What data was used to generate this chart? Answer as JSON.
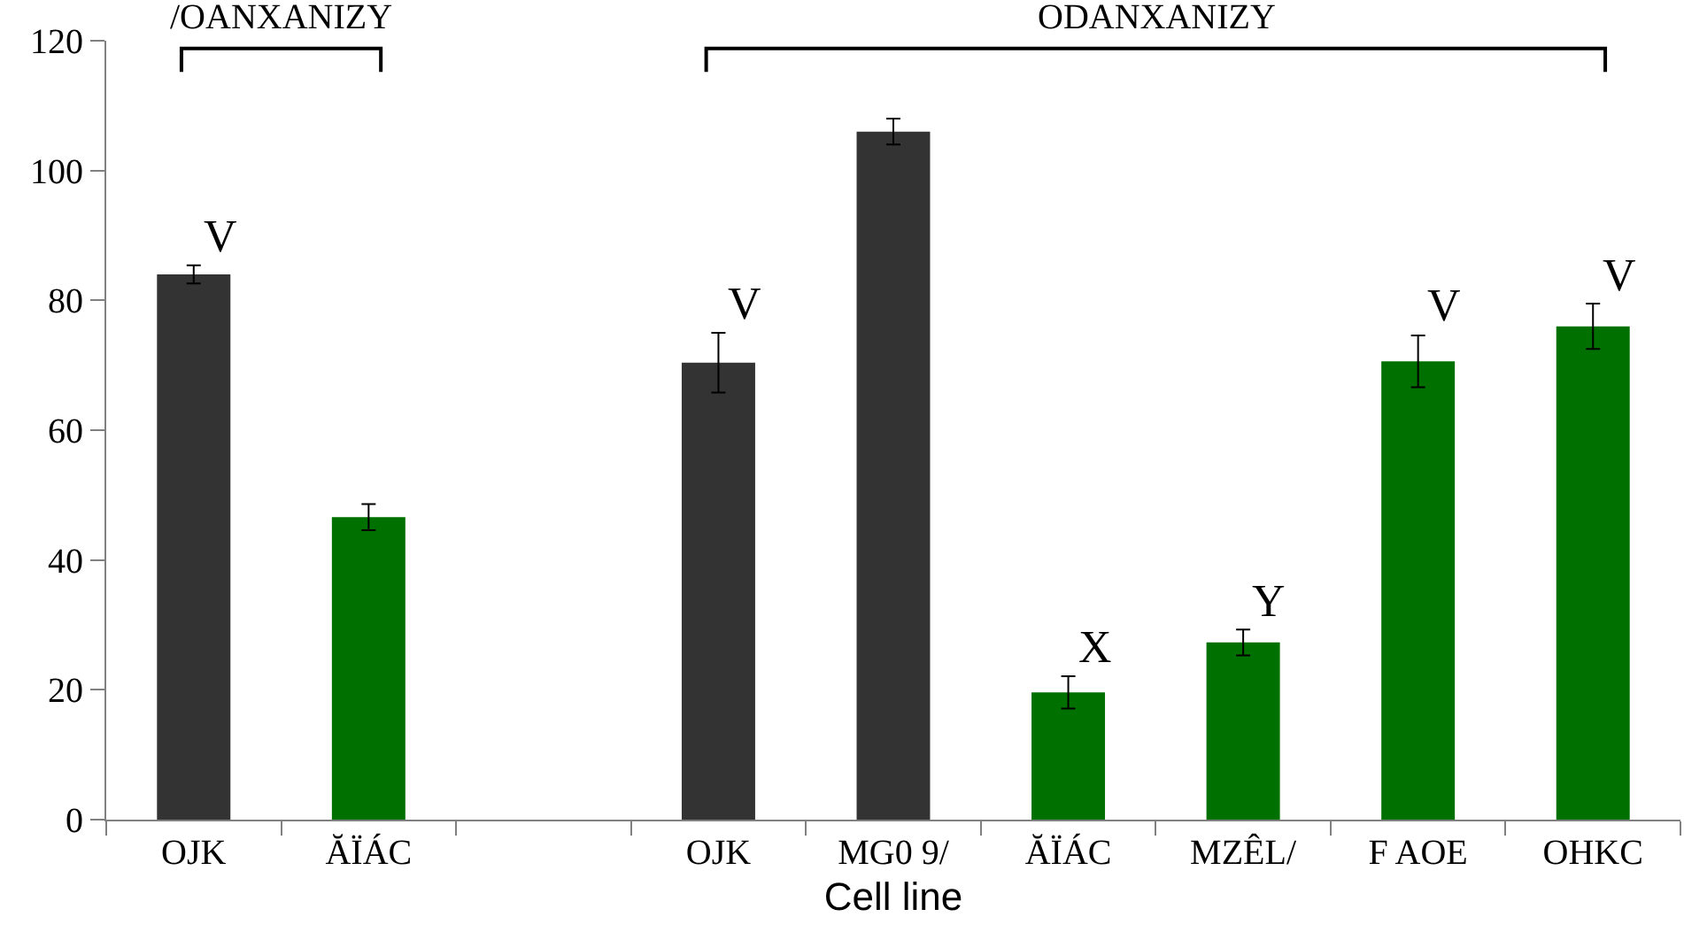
{
  "chart_data": {
    "type": "bar",
    "xlabel": "Cell line",
    "categories": [
      "OJK",
      "ĂÏÁC",
      null,
      "OJK",
      "MG0 9/",
      "ĂÏÁC",
      "MZÊL/",
      "F AOE",
      "OHKC"
    ],
    "values": [
      84,
      46.6,
      null,
      70.4,
      106,
      19.6,
      27.3,
      70.6,
      76
    ],
    "errors": [
      1.4,
      2,
      null,
      4.6,
      2,
      2.5,
      2,
      4,
      3.5
    ],
    "colors": [
      "#333333",
      "#007000",
      null,
      "#333333",
      "#333333",
      "#007000",
      "#007000",
      "#007000",
      "#007000"
    ],
    "value_labels": [
      "V",
      null,
      null,
      "V",
      null,
      "X",
      "Y",
      "V",
      "V"
    ],
    "annotations": [
      "/OANXANIZY",
      "ODANXANIZY"
    ],
    "ylim": [
      0,
      120
    ],
    "yticks": [
      0,
      20,
      40,
      60,
      80,
      100,
      120
    ]
  }
}
